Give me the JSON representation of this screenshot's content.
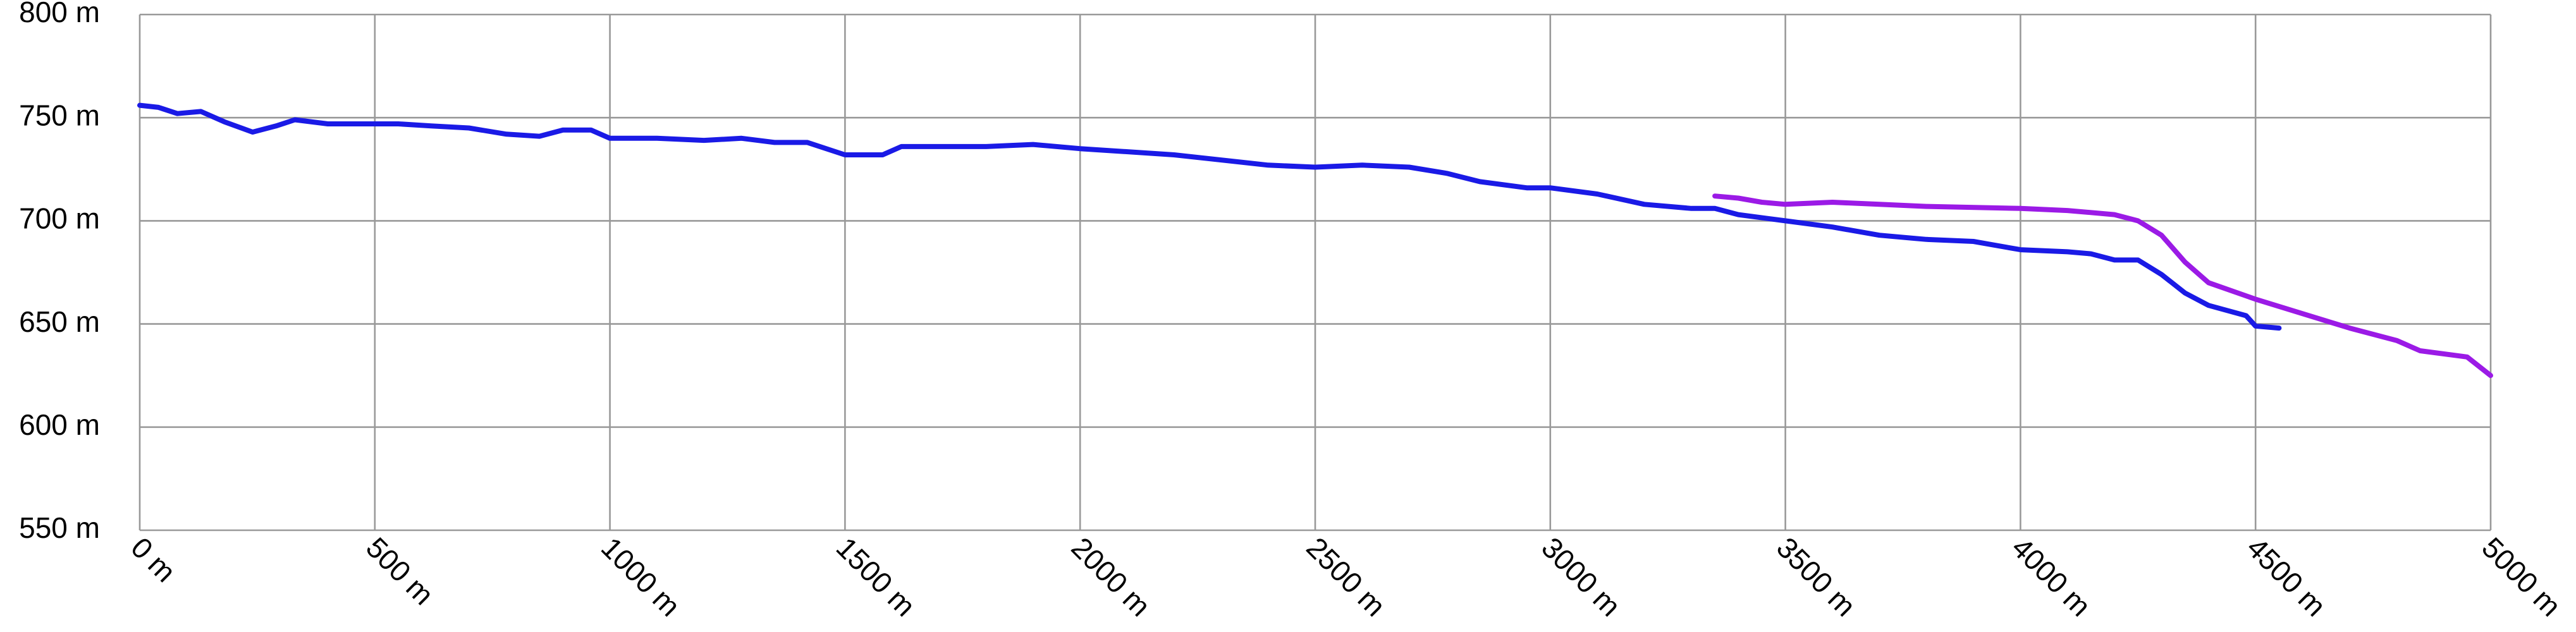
{
  "chart_data": {
    "type": "line",
    "xlim": [
      0,
      5000
    ],
    "xticks": [
      {
        "value": 0,
        "label": "0 m"
      },
      {
        "value": 500,
        "label": "500 m"
      },
      {
        "value": 1000,
        "label": "1000 m"
      },
      {
        "value": 1500,
        "label": "1500 m"
      },
      {
        "value": 2000,
        "label": "2000 m"
      },
      {
        "value": 2500,
        "label": "2500 m"
      },
      {
        "value": 3000,
        "label": "3000 m"
      },
      {
        "value": 3500,
        "label": "3500 m"
      },
      {
        "value": 4000,
        "label": "4000 m"
      },
      {
        "value": 4500,
        "label": "4500 m"
      },
      {
        "value": 5000,
        "label": "5000 m"
      }
    ],
    "ylim": [
      550,
      800
    ],
    "yticks": [
      {
        "value": 550,
        "label": "550 m"
      },
      {
        "value": 600,
        "label": "600 m"
      },
      {
        "value": 650,
        "label": "650 m"
      },
      {
        "value": 700,
        "label": "700 m"
      },
      {
        "value": 750,
        "label": "750 m"
      },
      {
        "value": 800,
        "label": "800 m"
      }
    ],
    "grid": true,
    "series": [
      {
        "color": "#1a1ae6",
        "x": [
          0,
          40,
          80,
          130,
          180,
          240,
          290,
          330,
          400,
          500,
          550,
          620,
          700,
          780,
          850,
          900,
          960,
          1000,
          1100,
          1200,
          1280,
          1350,
          1420,
          1500,
          1580,
          1620,
          1700,
          1800,
          1900,
          2000,
          2200,
          2400,
          2500,
          2600,
          2700,
          2780,
          2850,
          2950,
          3000,
          3100,
          3200,
          3300,
          3350,
          3400,
          3500,
          3600,
          3700,
          3800,
          3900,
          4000,
          4100,
          4150,
          4200,
          4250,
          4300,
          4350,
          4400,
          4480,
          4500,
          4550
        ],
        "values": [
          756,
          755,
          752,
          753,
          748,
          743,
          746,
          749,
          747,
          747,
          747,
          746,
          745,
          742,
          741,
          744,
          744,
          740,
          740,
          739,
          740,
          738,
          738,
          732,
          732,
          736,
          736,
          736,
          737,
          735,
          732,
          727,
          726,
          727,
          726,
          723,
          719,
          716,
          716,
          713,
          708,
          706,
          706,
          703,
          700,
          697,
          693,
          691,
          690,
          686,
          685,
          684,
          681,
          681,
          674,
          665,
          659,
          654,
          649,
          648
        ]
      },
      {
        "color": "#9b1ae6",
        "x": [
          3350,
          3400,
          3450,
          3500,
          3600,
          3700,
          3800,
          4000,
          4100,
          4200,
          4250,
          4300,
          4350,
          4400,
          4500,
          4600,
          4700,
          4800,
          4850,
          4950,
          5000
        ],
        "values": [
          712,
          711,
          709,
          708,
          709,
          708,
          707,
          706,
          705,
          703,
          700,
          693,
          680,
          670,
          662,
          655,
          648,
          642,
          637,
          634,
          625
        ]
      }
    ]
  }
}
